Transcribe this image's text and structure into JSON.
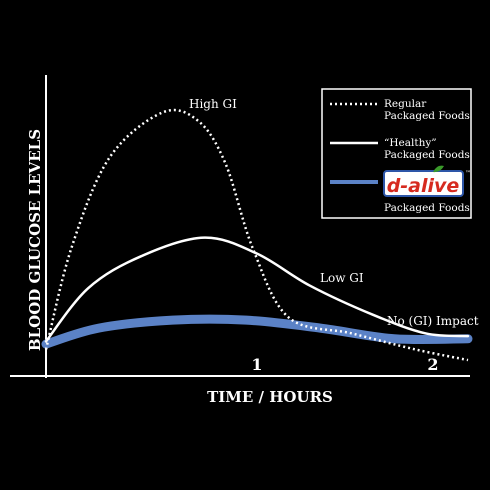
{
  "chart_data": {
    "type": "line",
    "xlabel": "TIME / HOURS",
    "ylabel": "BLOOD GLUCOSE LEVELS",
    "xticks": [
      {
        "value": 1,
        "label": "1"
      },
      {
        "value": 2,
        "label": "2"
      }
    ],
    "xlim": [
      0,
      2.2
    ],
    "ylim": [
      0,
      100
    ],
    "y_scale_shown": false,
    "grid": false,
    "legend_placement": "top-right",
    "series": [
      {
        "name": "Regular Packaged Foods",
        "style": "dotted",
        "annotation": "High GI",
        "x": [
          0,
          0.12,
          0.3,
          0.55,
          0.72,
          0.85,
          0.98,
          1.15,
          1.45,
          1.75,
          2.0
        ],
        "y": [
          10,
          48,
          82,
          99,
          96,
          80,
          48,
          22,
          16,
          10,
          6
        ]
      },
      {
        "name": "“Healthy” Packaged Foods",
        "style": "solid",
        "annotation": "Low GI",
        "x": [
          0,
          0.2,
          0.45,
          0.75,
          1.0,
          1.25,
          1.55,
          1.8,
          2.0
        ],
        "y": [
          13,
          33,
          45,
          52,
          46,
          34,
          23,
          16,
          15
        ]
      },
      {
        "name": "Packaged Foods",
        "brand_logo": "d-alive",
        "style": "band",
        "annotation": "No (GI) Impact",
        "x": [
          0,
          0.25,
          0.6,
          0.95,
          1.3,
          1.65,
          2.0
        ],
        "y": [
          12,
          18,
          21,
          21,
          18,
          14,
          14
        ]
      }
    ]
  },
  "legend": {
    "items": [
      {
        "line1": "Regular",
        "line2": "Packaged Foods"
      },
      {
        "line1": "“Healthy”",
        "line2": "Packaged Foods"
      },
      {
        "line1": "Packaged Foods"
      }
    ],
    "logo_text": "d-alive",
    "logo_mark": "™"
  },
  "colors": {
    "background": "#000000",
    "foreground": "#ffffff",
    "band": "#5b82c6",
    "logo_red": "#d62a1f",
    "logo_border": "#2d56a8",
    "leaf_green": "#3a9a2a"
  }
}
